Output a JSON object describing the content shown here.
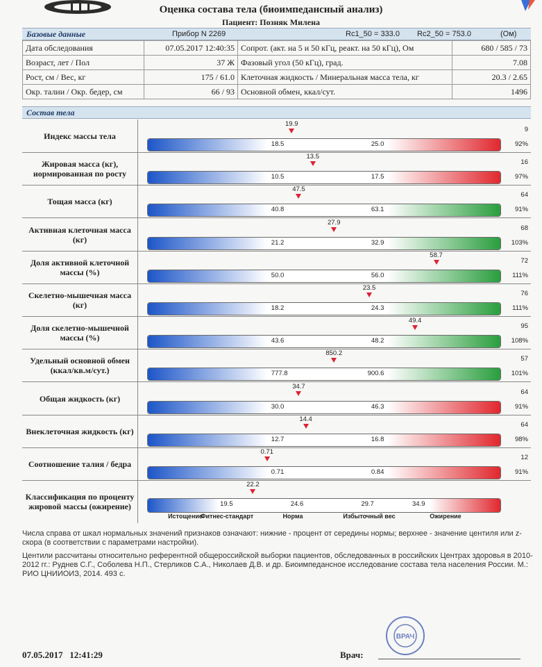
{
  "header": {
    "title": "Оценка состава тела (биоимпедансный анализ)",
    "patient": "Пациент: Позняк Милена"
  },
  "base": {
    "section": "Базовые данные",
    "device": "Прибор N 2269",
    "rc1": "Rc1_50 = 333.0",
    "rc2": "Rc2_50 = 753.0",
    "unit": "(Ом)",
    "rows": [
      {
        "l1": "Дата обследования",
        "v1": "07.05.2017 12:40:35",
        "l2": "Сопрот. (акт. на 5 и 50 кГц, реакт. на 50 кГц), Ом",
        "v2": "680 / 585 / 73"
      },
      {
        "l1": "Возраст, лет / Пол",
        "v1": "37 Ж",
        "l2": "Фазовый угол (50 кГц), град.",
        "v2": "7.08"
      },
      {
        "l1": "Рост, см / Вес, кг",
        "v1": "175 / 61.0",
        "l2": "Клеточная жидкость / Минеральная масса тела, кг",
        "v2": "20.3 / 2.65"
      },
      {
        "l1": "Окр. талии / Окр. бедер, см",
        "v1": "66 / 93",
        "l2": "Основной обмен, ккал/сут.",
        "v2": "1496"
      }
    ]
  },
  "composition": {
    "section": "Состав тела",
    "rows": [
      {
        "label": "Индекс массы тела",
        "value": "19.9",
        "low": "18.5",
        "high": "25.0",
        "top_pct": "9",
        "bottom_pct": "92%",
        "pos": 0.41,
        "right": "red"
      },
      {
        "label": "Жировая масса (кг), нормированная по росту",
        "value": "13.5",
        "low": "10.5",
        "high": "17.5",
        "top_pct": "16",
        "bottom_pct": "97%",
        "pos": 0.47,
        "right": "red"
      },
      {
        "label": "Тощая масса (кг)",
        "value": "47.5",
        "low": "40.8",
        "high": "63.1",
        "top_pct": "64",
        "bottom_pct": "91%",
        "pos": 0.43,
        "right": "green"
      },
      {
        "label": "Активная клеточная масса (кг)",
        "value": "27.9",
        "low": "21.2",
        "high": "32.9",
        "top_pct": "68",
        "bottom_pct": "103%",
        "pos": 0.53,
        "right": "green"
      },
      {
        "label": "Доля активной клеточной массы (%)",
        "value": "58.7",
        "low": "50.0",
        "high": "56.0",
        "top_pct": "72",
        "bottom_pct": "111%",
        "pos": 0.82,
        "right": "green"
      },
      {
        "label": "Скелетно-мышечная масса (кг)",
        "value": "23.5",
        "low": "18.2",
        "high": "24.3",
        "top_pct": "76",
        "bottom_pct": "111%",
        "pos": 0.63,
        "right": "green"
      },
      {
        "label": "Доля скелетно-мышечной массы (%)",
        "value": "49.4",
        "low": "43.6",
        "high": "48.2",
        "top_pct": "95",
        "bottom_pct": "108%",
        "pos": 0.76,
        "right": "green"
      },
      {
        "label": "Удельный основной обмен (ккал/кв.м/сут.)",
        "value": "850.2",
        "low": "777.8",
        "high": "900.6",
        "top_pct": "57",
        "bottom_pct": "101%",
        "pos": 0.53,
        "right": "green"
      },
      {
        "label": "Общая жидкость (кг)",
        "value": "34.7",
        "low": "30.0",
        "high": "46.3",
        "top_pct": "64",
        "bottom_pct": "91%",
        "pos": 0.43,
        "right": "red"
      },
      {
        "label": "Внеклеточная жидкость (кг)",
        "value": "14.4",
        "low": "12.7",
        "high": "16.8",
        "top_pct": "64",
        "bottom_pct": "98%",
        "pos": 0.45,
        "right": "red"
      },
      {
        "label": "Соотношение талия / бедра",
        "value": "0.71",
        "low": "0.71",
        "high": "0.84",
        "top_pct": "12",
        "bottom_pct": "91%",
        "pos": 0.34,
        "right": "red"
      }
    ],
    "classification": {
      "label": "Классификация по проценту жировой массы (ожирение)",
      "value": "22.2",
      "ticks": [
        "19.5",
        "24.6",
        "29.7",
        "34.9"
      ],
      "zones": [
        "Истощение",
        "Фитнес-стандарт",
        "Норма",
        "Избыточный вес",
        "Ожирение"
      ]
    }
  },
  "notes": [
    "Числа справа от шкал нормальных значений признаков означают: нижние - процент от середины нормы; верхнее - значение центиля или z-скора (в соответствии с параметрами настройки).",
    "Центили рассчитаны относительно референтной общероссийской выборки пациентов, обследованных в российских Центрах здоровья в 2010-2012 гг.: Руднев С.Г., Соболева Н.П., Стерликов С.А., Николаев Д.В. и др. Биоимпедансное исследование состава тела населения России. М.: РИО ЦНИИОИЗ, 2014. 493 с."
  ],
  "footer": {
    "datetime": "07.05.2017   12:41:29",
    "doctor_label": "Врач:"
  },
  "stamp": {
    "text": "ВРАЧ"
  },
  "colors": {
    "blue": "#1d56c8",
    "red": "#e0282e",
    "green": "#2a9e3e",
    "band": "#d5e3ef"
  }
}
